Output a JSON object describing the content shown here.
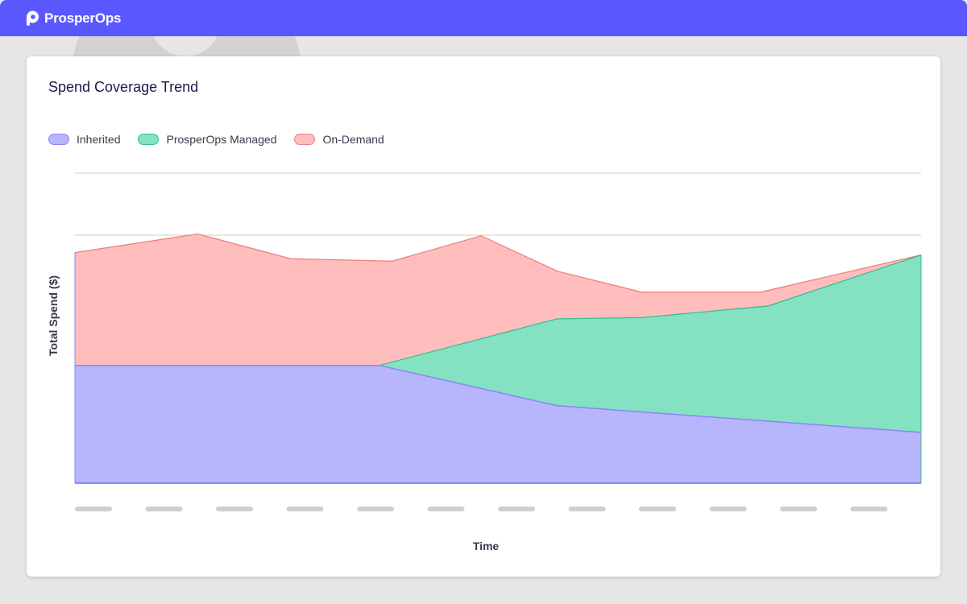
{
  "app": {
    "name": "ProsperOps"
  },
  "card": {
    "title": "Spend Coverage Trend"
  },
  "legend": [
    {
      "label": "Inherited",
      "fill": "#b7b5fc",
      "stroke": "#8a86f5"
    },
    {
      "label": "ProsperOps Managed",
      "fill": "#84e2c3",
      "stroke": "#36bf8e"
    },
    {
      "label": "On-Demand",
      "fill": "#ffbdbd",
      "stroke": "#f08080"
    }
  ],
  "chart_data": {
    "type": "area",
    "stacked": true,
    "title": "Spend Coverage Trend",
    "xlabel": "Time",
    "ylabel": "Total Spend ($)",
    "ylim": [
      0,
      5
    ],
    "grid": true,
    "legend_position": "top-left",
    "x_tick_count": 12,
    "series": [
      {
        "name": "Inherited",
        "color": "#b7b5fc",
        "line_color": "#8a86f5",
        "points": [
          [
            0,
            1.9
          ],
          [
            3.6,
            1.9
          ],
          [
            5.7,
            1.25
          ],
          [
            10,
            0.82
          ]
        ]
      },
      {
        "name": "ProsperOps Managed",
        "color": "#84e2c3",
        "line_color": "#36bf8e",
        "points": [
          [
            0,
            1.9
          ],
          [
            3.6,
            1.9
          ],
          [
            5.7,
            2.65
          ],
          [
            6.7,
            2.67
          ],
          [
            8.2,
            2.86
          ],
          [
            10,
            3.68
          ]
        ]
      },
      {
        "name": "On-Demand",
        "color": "#ffbdbd",
        "line_color": "#f08080",
        "points": [
          [
            0,
            3.72
          ],
          [
            1.45,
            4.02
          ],
          [
            2.55,
            3.62
          ],
          [
            3.75,
            3.58
          ],
          [
            4.8,
            3.99
          ],
          [
            5.7,
            3.42
          ],
          [
            6.7,
            3.08
          ],
          [
            8.1,
            3.08
          ],
          [
            10,
            3.68
          ]
        ]
      }
    ]
  }
}
